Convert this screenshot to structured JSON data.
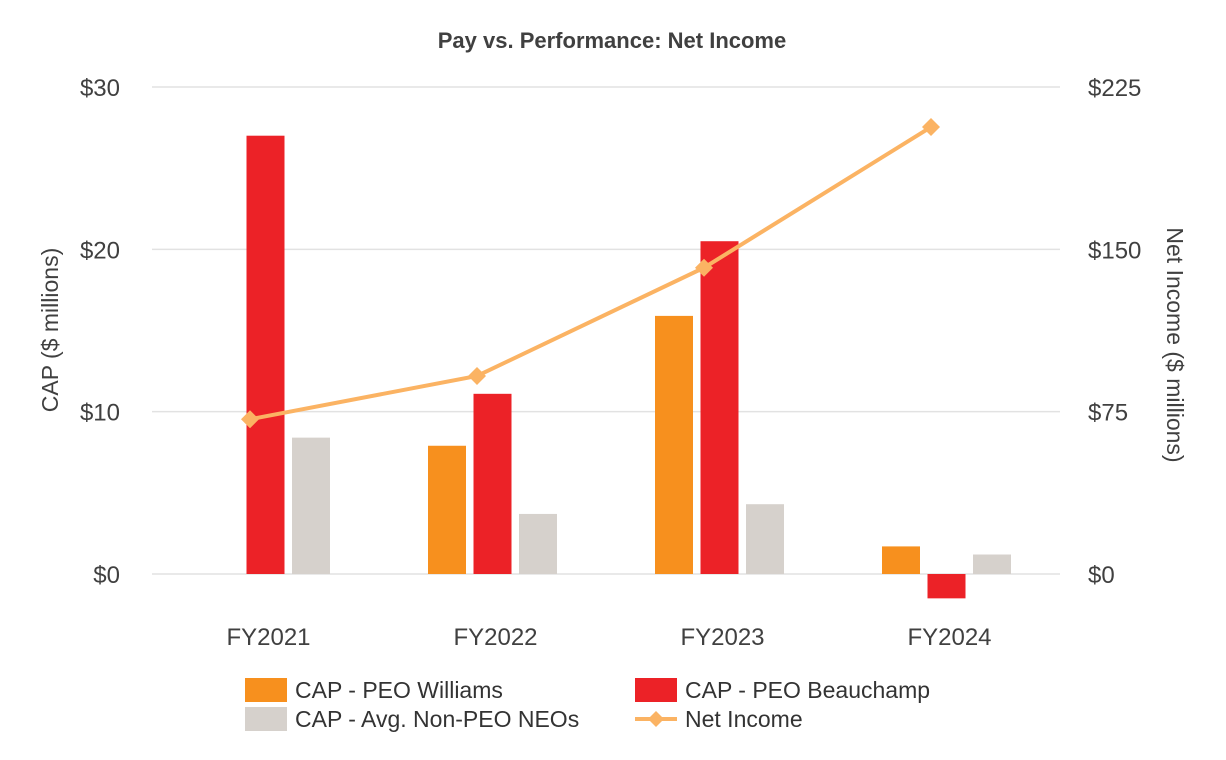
{
  "chart_data": {
    "type": "bar",
    "title": "Pay vs. Performance: Net Income",
    "categories": [
      "FY2021",
      "FY2022",
      "FY2023",
      "FY2024"
    ],
    "ylabel": "CAP  ($ millions)",
    "y2label": "Net Income ($ millions)",
    "ylim": [
      0,
      30
    ],
    "y2lim": [
      0,
      225
    ],
    "yticks": [
      0,
      10,
      20,
      30
    ],
    "y2ticks": [
      0,
      75,
      150,
      225
    ],
    "ytick_labels": [
      "$0",
      "$10",
      "$20",
      "$30"
    ],
    "y2tick_labels": [
      "$0",
      "$75",
      "$150",
      "$225"
    ],
    "grid": true,
    "series": [
      {
        "name": "CAP - PEO Williams",
        "kind": "bar",
        "axis": "left",
        "color": "#F7901E",
        "values": [
          null,
          7.9,
          15.9,
          1.7
        ]
      },
      {
        "name": "CAP - PEO Beauchamp",
        "kind": "bar",
        "axis": "left",
        "color": "#EC2227",
        "values": [
          27.0,
          11.1,
          20.5,
          -1.5
        ]
      },
      {
        "name": "CAP - Avg. Non-PEO NEOs",
        "kind": "bar",
        "axis": "left",
        "color": "#D6D1CC",
        "values": [
          8.4,
          3.7,
          4.3,
          1.2
        ]
      },
      {
        "name": "Net Income",
        "kind": "line",
        "axis": "right",
        "color": "#FBB363",
        "values": [
          71.5,
          91.5,
          141.5,
          206.5
        ]
      }
    ],
    "legend": {
      "placement": "bottom",
      "columns": 2
    }
  }
}
